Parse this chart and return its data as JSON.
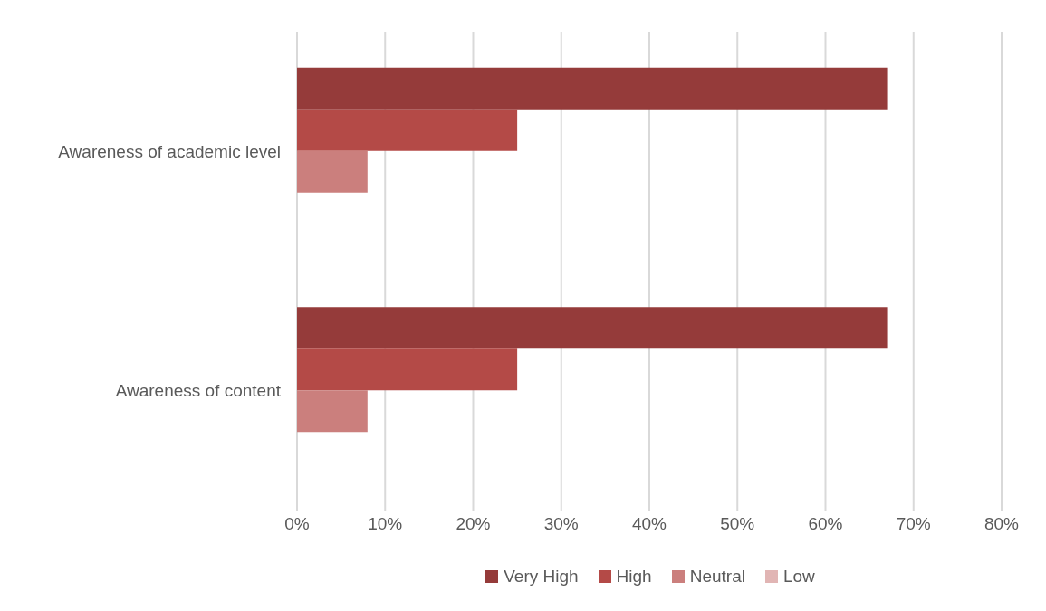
{
  "chart_data": {
    "type": "bar",
    "orientation": "horizontal",
    "categories": [
      "Awareness of academic level",
      "Awareness of content"
    ],
    "series": [
      {
        "name": "Very High",
        "color": "#953b3a",
        "values": [
          67,
          67
        ]
      },
      {
        "name": "High",
        "color": "#b44a47",
        "values": [
          25,
          25
        ]
      },
      {
        "name": "Neutral",
        "color": "#cb7f7d",
        "values": [
          8,
          8
        ]
      },
      {
        "name": "Low",
        "color": "#e1b5b4",
        "values": [
          0,
          0
        ]
      }
    ],
    "xlim": [
      0,
      80
    ],
    "xticks": [
      {
        "value": 0,
        "label": "0%"
      },
      {
        "value": 10,
        "label": "10%"
      },
      {
        "value": 20,
        "label": "20%"
      },
      {
        "value": 30,
        "label": "30%"
      },
      {
        "value": 40,
        "label": "40%"
      },
      {
        "value": 50,
        "label": "50%"
      },
      {
        "value": 60,
        "label": "60%"
      },
      {
        "value": 70,
        "label": "70%"
      },
      {
        "value": 80,
        "label": "80%"
      }
    ],
    "grid": "x",
    "legend": "bottom"
  }
}
